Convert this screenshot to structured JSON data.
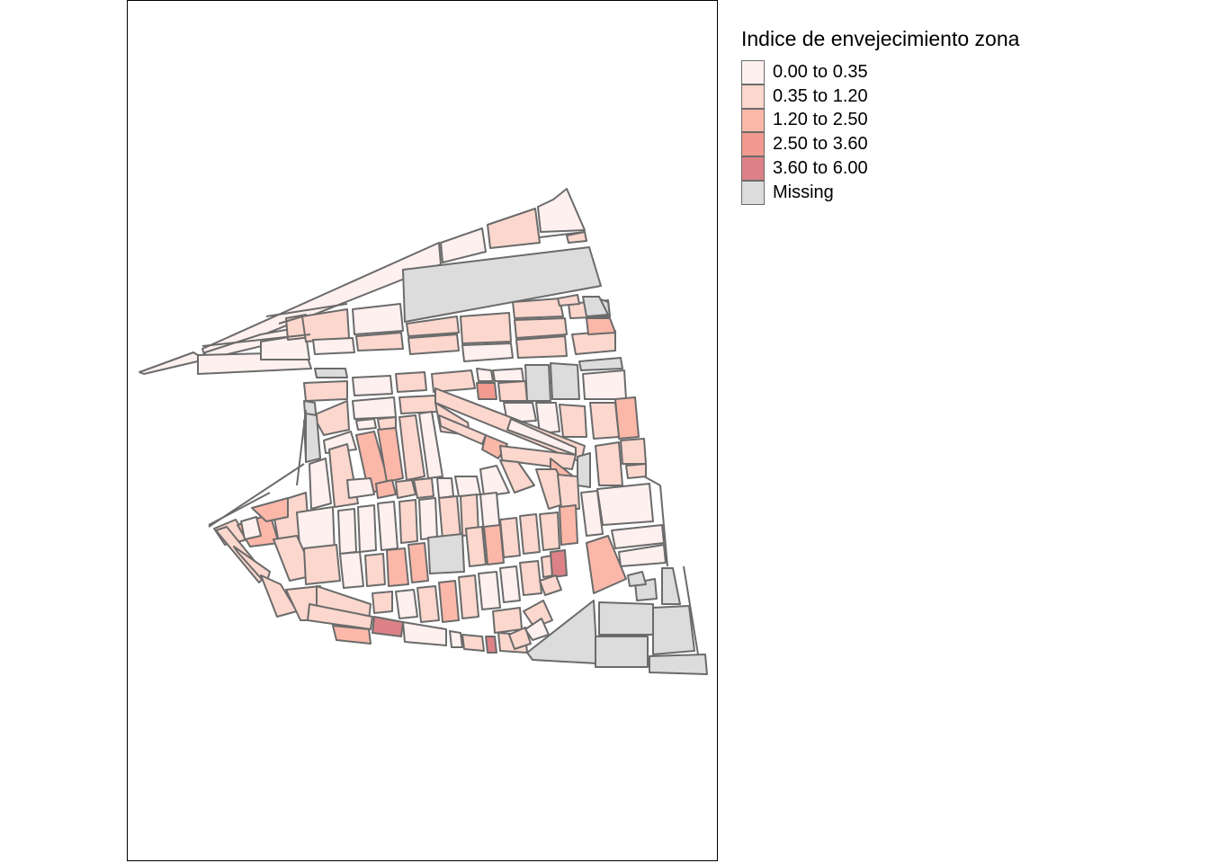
{
  "legend": {
    "title": "Indice de envejecimiento zona",
    "classes": [
      {
        "label": "0.00 to 0.35",
        "color": "#fdf0ee"
      },
      {
        "label": "0.35 to 1.20",
        "color": "#fcd7cd"
      },
      {
        "label": "1.20 to 2.50",
        "color": "#fbb8a9"
      },
      {
        "label": "2.50 to 3.60",
        "color": "#f29a8f"
      },
      {
        "label": "3.60 to 6.00",
        "color": "#dc8287"
      },
      {
        "label": "Missing",
        "color": "#dcdcdc"
      }
    ]
  },
  "map_style": {
    "block_outline_color": "#6b6b6b",
    "frame_color": "#000000"
  }
}
